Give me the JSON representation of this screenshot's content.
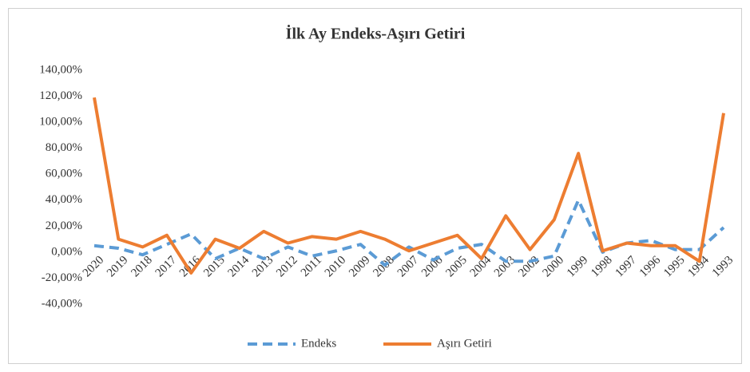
{
  "chart_data": {
    "type": "line",
    "title": "İlk Ay Endeks-Aşırı Getiri",
    "categories": [
      "2020",
      "2019",
      "2018",
      "2017",
      "2016",
      "2015",
      "2014",
      "2013",
      "2012",
      "2011",
      "2010",
      "2009",
      "2008",
      "2007",
      "2006",
      "2005",
      "2004",
      "2003",
      "2002",
      "2000",
      "1999",
      "1998",
      "1997",
      "1996",
      "1995",
      "1994",
      "1993"
    ],
    "series": [
      {
        "name": "Endeks",
        "color": "#5b9bd5",
        "dashed": true,
        "values": [
          5,
          3,
          -2,
          6,
          14,
          -5,
          3,
          -5,
          4,
          -3,
          1,
          6,
          -10,
          4,
          -6,
          3,
          6,
          -7,
          -7,
          -3,
          40,
          0,
          7,
          9,
          2,
          2,
          19
        ]
      },
      {
        "name": "Aşırı Getiri",
        "color": "#ed7d31",
        "dashed": false,
        "values": [
          119,
          10,
          4,
          13,
          -16,
          10,
          3,
          16,
          7,
          12,
          10,
          16,
          10,
          1,
          7,
          13,
          -5,
          28,
          2,
          25,
          76,
          1,
          7,
          5,
          5,
          -7,
          107
        ]
      }
    ],
    "ylim": [
      -40,
      140
    ],
    "yticks": [
      {
        "value": -40,
        "label": "-40,00%"
      },
      {
        "value": -20,
        "label": "-20,00%"
      },
      {
        "value": 0,
        "label": "0,00%"
      },
      {
        "value": 20,
        "label": "20,00%"
      },
      {
        "value": 40,
        "label": "40,00%"
      },
      {
        "value": 60,
        "label": "60,00%"
      },
      {
        "value": 80,
        "label": "80,00%"
      },
      {
        "value": 100,
        "label": "100,00%"
      },
      {
        "value": 120,
        "label": "120,00%"
      },
      {
        "value": 140,
        "label": "140,00%"
      }
    ],
    "grid": false,
    "legend": "bottom"
  }
}
